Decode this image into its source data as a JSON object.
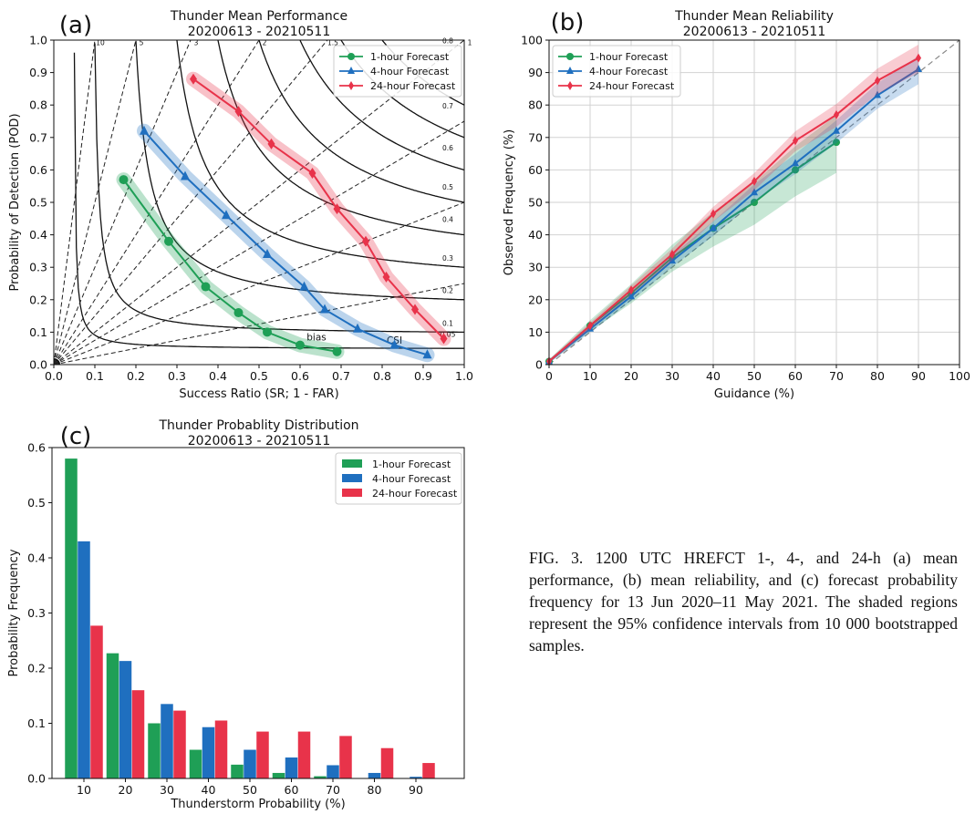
{
  "colors": {
    "h1": "#1f9f56",
    "h4": "#1f6fbf",
    "h24": "#e8334a"
  },
  "caption": "FIG. 3. 1200 UTC HREFCT 1-, 4-, and 24-h (a) mean performance, (b) mean reliability, and (c) forecast probability frequency for 13 Jun 2020–11 May 2021. The shaded regions represent the 95% confidence intervals from 10 000 bootstrapped samples.",
  "chart_data": [
    {
      "panel": "(a)",
      "type": "line",
      "title": "Thunder Mean Performance",
      "subtitle": "20200613 - 20210511",
      "xlabel": "Success Ratio (SR; 1 - FAR)",
      "ylabel": "Probability of Detection (POD)",
      "xlim": [
        0,
        1
      ],
      "ylim": [
        0,
        1
      ],
      "xticks": [
        "0.0",
        "0.1",
        "0.2",
        "0.3",
        "0.4",
        "0.5",
        "0.6",
        "0.7",
        "0.8",
        "0.9",
        "1.0"
      ],
      "yticks": [
        "0.0",
        "0.1",
        "0.2",
        "0.3",
        "0.4",
        "0.5",
        "0.6",
        "0.7",
        "0.8",
        "0.9",
        "1.0"
      ],
      "bias_lines": [
        0.25,
        0.5,
        0.75,
        1,
        1.5,
        2,
        3,
        5,
        10
      ],
      "bias_labels": [
        "10",
        "5",
        "3",
        "2",
        "1.5",
        "1"
      ],
      "csi_lines": [
        0.05,
        0.1,
        0.2,
        0.3,
        0.4,
        0.5,
        0.6,
        0.7,
        0.8
      ],
      "csi_labels": [
        "0.8",
        "0.7",
        "0.6",
        "0.5",
        "0.4",
        "0.3",
        "0.2",
        "0.1",
        "0.05"
      ],
      "annotations": [
        "bias",
        "CSI"
      ],
      "legend_position": "top-right",
      "series": [
        {
          "name": "1-hour Forecast",
          "marker": "circle",
          "x": [
            0.17,
            0.28,
            0.37,
            0.45,
            0.52,
            0.6,
            0.69
          ],
          "y": [
            0.57,
            0.38,
            0.24,
            0.16,
            0.1,
            0.06,
            0.04
          ]
        },
        {
          "name": "4-hour Forecast",
          "marker": "triangle",
          "x": [
            0.22,
            0.32,
            0.42,
            0.52,
            0.61,
            0.66,
            0.74,
            0.83,
            0.91
          ],
          "y": [
            0.72,
            0.58,
            0.46,
            0.34,
            0.24,
            0.17,
            0.11,
            0.06,
            0.03
          ]
        },
        {
          "name": "24-hour Forecast",
          "marker": "diamond",
          "x": [
            0.34,
            0.45,
            0.53,
            0.63,
            0.69,
            0.76,
            0.81,
            0.88,
            0.95
          ],
          "y": [
            0.88,
            0.78,
            0.68,
            0.59,
            0.48,
            0.38,
            0.27,
            0.17,
            0.08
          ]
        }
      ]
    },
    {
      "panel": "(b)",
      "type": "line",
      "title": "Thunder Mean Reliability",
      "subtitle": "20200613 - 20210511",
      "xlabel": "Guidance (%)",
      "ylabel": "Observed Frequency (%)",
      "xlim": [
        0,
        100
      ],
      "ylim": [
        0,
        100
      ],
      "xticks": [
        "0",
        "10",
        "20",
        "30",
        "40",
        "50",
        "60",
        "70",
        "80",
        "90",
        "100"
      ],
      "yticks": [
        "0",
        "10",
        "20",
        "30",
        "40",
        "50",
        "60",
        "70",
        "80",
        "90",
        "100"
      ],
      "grid": true,
      "legend_position": "top-left",
      "series": [
        {
          "name": "1-hour Forecast",
          "marker": "circle",
          "x": [
            0,
            10,
            20,
            30,
            40,
            50,
            60,
            70
          ],
          "y": [
            1,
            12,
            22,
            33,
            42,
            50,
            60,
            68.5
          ]
        },
        {
          "name": "4-hour Forecast",
          "marker": "triangle",
          "x": [
            0,
            10,
            20,
            30,
            40,
            50,
            60,
            70,
            80,
            90
          ],
          "y": [
            1,
            11,
            21,
            32,
            42,
            53,
            62,
            72,
            83,
            91
          ]
        },
        {
          "name": "24-hour Forecast",
          "marker": "diamond",
          "x": [
            0,
            10,
            20,
            30,
            40,
            50,
            60,
            70,
            80,
            90
          ],
          "y": [
            1,
            12,
            23,
            34,
            46.5,
            56.5,
            69,
            77,
            87.5,
            94.5
          ]
        }
      ]
    },
    {
      "panel": "(c)",
      "type": "bar",
      "title": "Thunder Probablity Distribution",
      "subtitle": "20200613 - 20210511",
      "xlabel": "Thunderstorm Probability (%)",
      "ylabel": "Probability Frequency",
      "ylim": [
        0,
        0.6
      ],
      "yticks": [
        "0.0",
        "0.1",
        "0.2",
        "0.3",
        "0.4",
        "0.5",
        "0.6"
      ],
      "categories": [
        "10",
        "20",
        "30",
        "40",
        "50",
        "60",
        "70",
        "80",
        "90"
      ],
      "legend_position": "top-right",
      "series": [
        {
          "name": "1-hour Forecast",
          "values": [
            0.58,
            0.227,
            0.1,
            0.052,
            0.025,
            0.01,
            0.004,
            0,
            0
          ]
        },
        {
          "name": "4-hour Forecast",
          "values": [
            0.43,
            0.213,
            0.135,
            0.093,
            0.052,
            0.038,
            0.024,
            0.01,
            0.003
          ]
        },
        {
          "name": "24-hour Forecast",
          "values": [
            0.277,
            0.16,
            0.123,
            0.105,
            0.085,
            0.085,
            0.077,
            0.055,
            0.028
          ]
        }
      ]
    }
  ]
}
